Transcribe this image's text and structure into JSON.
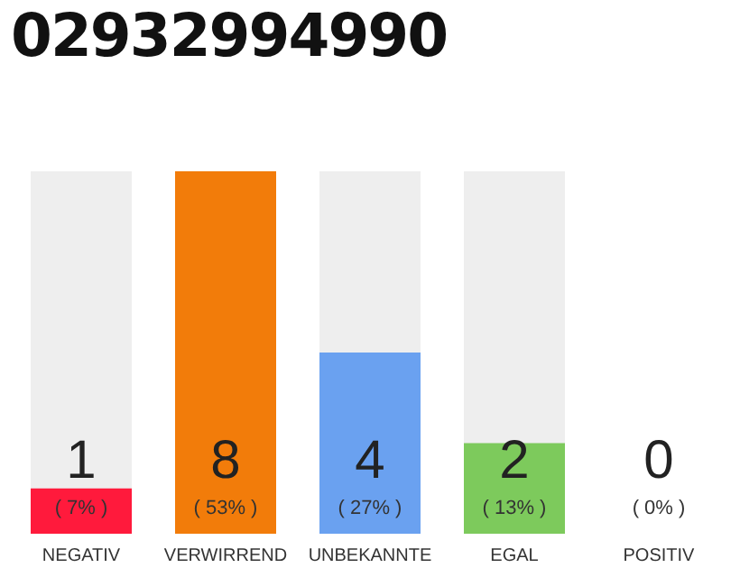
{
  "chart_data": {
    "type": "bar",
    "title": "02932994990",
    "categories": [
      "NEGATIV",
      "VERWIRREND",
      "UNBEKANNTE",
      "EGAL",
      "POSITIV"
    ],
    "values": [
      1,
      8,
      4,
      2,
      0
    ],
    "colors": [
      "#ff1a3c",
      "#f27c0a",
      "#6aa1f0",
      "#7dca5c",
      "#cccccc"
    ],
    "data_labels": true,
    "annotations": [
      "( 7% )",
      "( 53% )",
      "( 27% )",
      "( 13% )",
      "( 0% )"
    ]
  }
}
